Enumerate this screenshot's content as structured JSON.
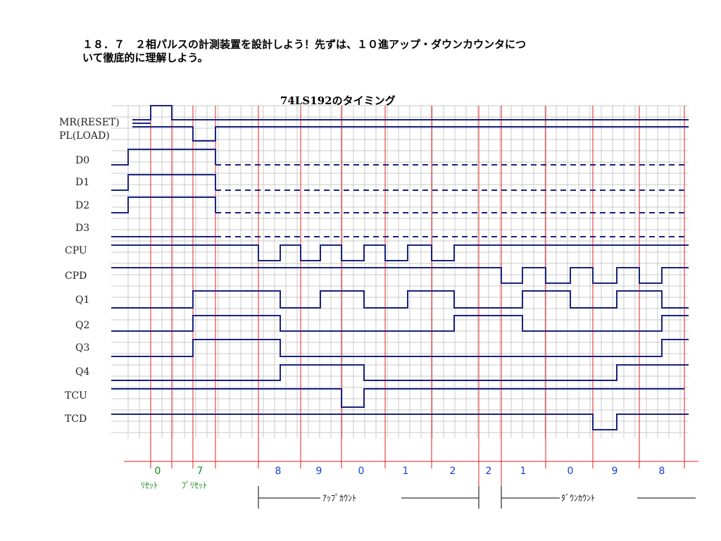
{
  "heading": {
    "line1": "１８．７　２相パルスの計測装置を設計しよう！先ずは、１０進アップ・ダウンカウンタにつ",
    "line2": "いて徹底的に理解しよう。"
  },
  "diagram": {
    "title": "74LS192のタイミング",
    "signals": [
      {
        "name": "MR(RESET)"
      },
      {
        "name": "PL(LOAD)"
      },
      {
        "name": "D0"
      },
      {
        "name": "D1"
      },
      {
        "name": "D2"
      },
      {
        "name": "D3"
      },
      {
        "name": "CPU"
      },
      {
        "name": "CPD"
      },
      {
        "name": "Q1"
      },
      {
        "name": "Q2"
      },
      {
        "name": "Q3"
      },
      {
        "name": "Q4"
      },
      {
        "name": "TCU"
      },
      {
        "name": "TCD"
      }
    ],
    "counts": [
      {
        "label": "0",
        "color": "#1a8a1a"
      },
      {
        "label": "7",
        "color": "#1a8a1a"
      },
      {
        "label": "8",
        "color": "#1a3fd8"
      },
      {
        "label": "9",
        "color": "#1a3fd8"
      },
      {
        "label": "0",
        "color": "#1a3fd8"
      },
      {
        "label": "1",
        "color": "#1a3fd8"
      },
      {
        "label": "2",
        "color": "#1a3fd8"
      },
      {
        "label": "2",
        "color": "#1a3fd8"
      },
      {
        "label": "1",
        "color": "#1a3fd8"
      },
      {
        "label": "0",
        "color": "#1a3fd8"
      },
      {
        "label": "9",
        "color": "#1a3fd8"
      },
      {
        "label": "8",
        "color": "#1a3fd8"
      }
    ],
    "reset_caption": "ﾘｾｯﾄ",
    "preset_caption": "ﾌﾟﾘｾｯﾄ",
    "up_count_caption": "ｱｯﾌﾟｶｳﾝﾄ",
    "down_count_caption": "ﾀﾞｳﾝｶｳﾝﾄ",
    "colors": {
      "signal": "#1a237e",
      "grid": "#c8c8c8",
      "marker": "#e32020"
    }
  }
}
